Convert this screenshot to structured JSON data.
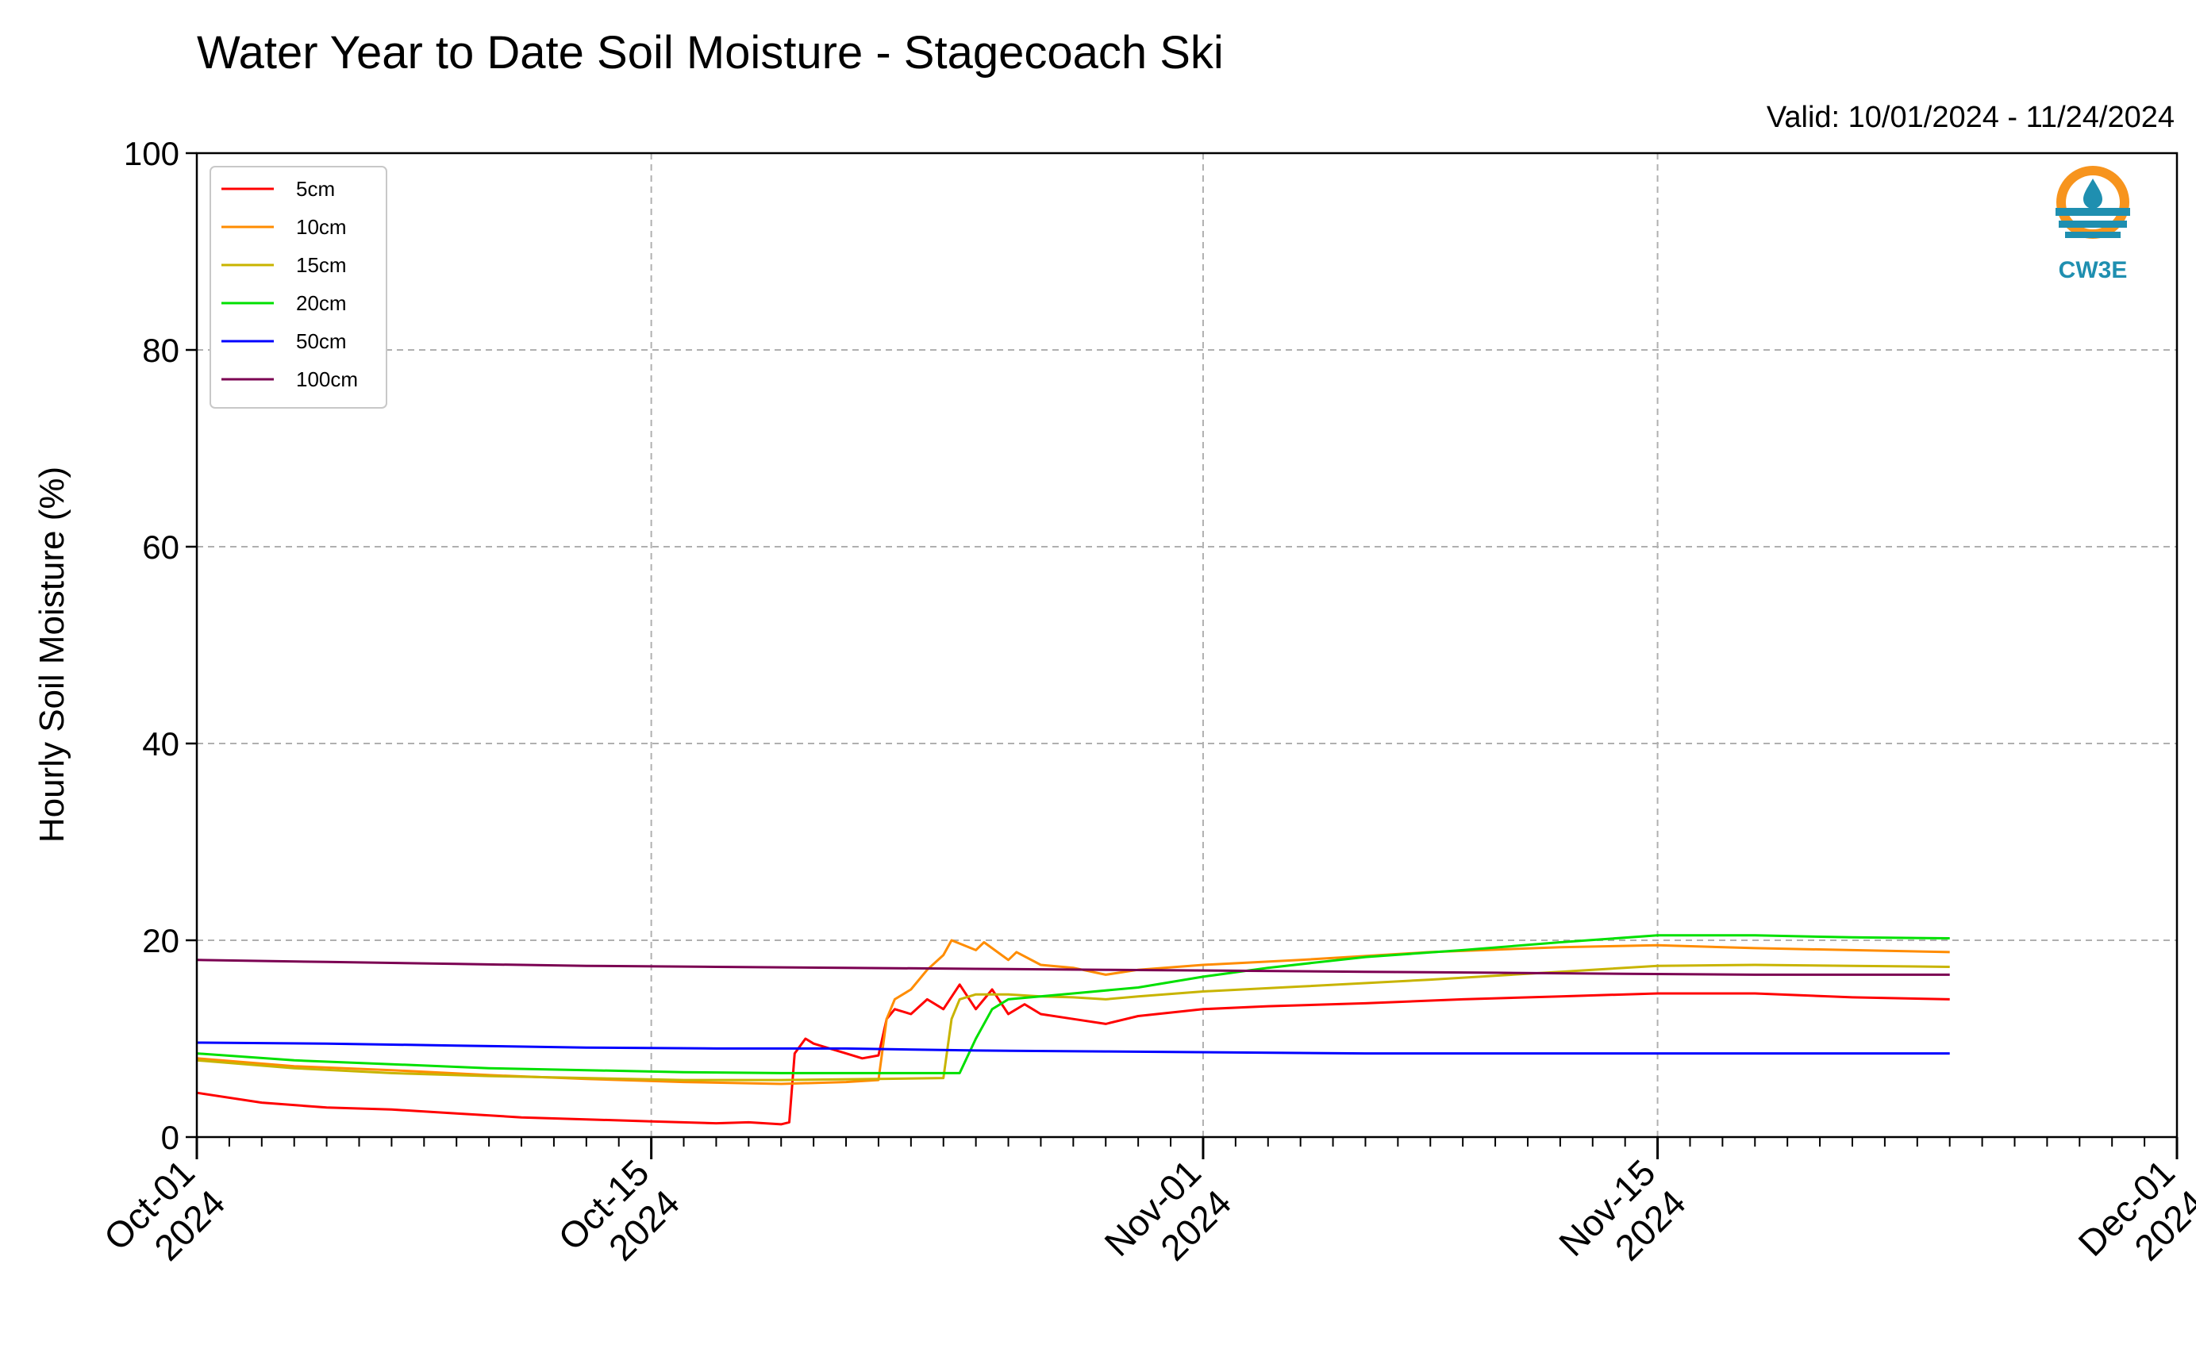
{
  "chart_data": {
    "type": "line",
    "title": "Water Year to Date Soil Moisture - Stagecoach Ski",
    "subtitle": "Valid: 10/01/2024 - 11/24/2024",
    "ylabel": "Hourly Soil Moisture (%)",
    "xlabel": "",
    "ylim": [
      0,
      100
    ],
    "xlim": [
      "2024-10-01",
      "2024-12-01"
    ],
    "yticks": [
      0,
      20,
      40,
      60,
      80,
      100
    ],
    "xticks": [
      {
        "date": "2024-10-01",
        "line1": "Oct-01",
        "line2": "2024"
      },
      {
        "date": "2024-10-15",
        "line1": "Oct-15",
        "line2": "2024"
      },
      {
        "date": "2024-11-01",
        "line1": "Nov-01",
        "line2": "2024"
      },
      {
        "date": "2024-11-15",
        "line1": "Nov-15",
        "line2": "2024"
      },
      {
        "date": "2024-12-01",
        "line1": "Dec-01",
        "line2": "2024"
      }
    ],
    "grid": true,
    "legend_position": "top-left",
    "logo_text": "CW3E",
    "series": [
      {
        "name": "5cm",
        "color": "#ff0000",
        "points": [
          [
            "2024-10-01",
            4.5
          ],
          [
            "2024-10-03",
            3.5
          ],
          [
            "2024-10-05",
            3.0
          ],
          [
            "2024-10-07",
            2.8
          ],
          [
            "2024-10-09",
            2.4
          ],
          [
            "2024-10-11",
            2.0
          ],
          [
            "2024-10-13",
            1.8
          ],
          [
            "2024-10-15",
            1.6
          ],
          [
            "2024-10-17",
            1.4
          ],
          [
            "2024-10-18",
            1.5
          ],
          [
            "2024-10-19",
            1.3
          ],
          [
            "2024-10-19T06",
            1.5
          ],
          [
            "2024-10-19T10",
            8.5
          ],
          [
            "2024-10-19T18",
            10.0
          ],
          [
            "2024-10-20",
            9.5
          ],
          [
            "2024-10-20T12",
            9.0
          ],
          [
            "2024-10-21",
            8.5
          ],
          [
            "2024-10-21T12",
            8.0
          ],
          [
            "2024-10-22",
            8.3
          ],
          [
            "2024-10-22T06",
            12.0
          ],
          [
            "2024-10-22T12",
            13.0
          ],
          [
            "2024-10-23",
            12.5
          ],
          [
            "2024-10-23T12",
            14.0
          ],
          [
            "2024-10-24",
            13.0
          ],
          [
            "2024-10-24T12",
            15.5
          ],
          [
            "2024-10-25",
            13.0
          ],
          [
            "2024-10-25T12",
            15.0
          ],
          [
            "2024-10-26",
            12.5
          ],
          [
            "2024-10-26T12",
            13.5
          ],
          [
            "2024-10-27",
            12.5
          ],
          [
            "2024-10-28",
            12.0
          ],
          [
            "2024-10-29",
            11.5
          ],
          [
            "2024-10-30",
            12.3
          ],
          [
            "2024-11-01",
            13.0
          ],
          [
            "2024-11-03",
            13.3
          ],
          [
            "2024-11-06",
            13.6
          ],
          [
            "2024-11-09",
            14.0
          ],
          [
            "2024-11-12",
            14.3
          ],
          [
            "2024-11-15",
            14.6
          ],
          [
            "2024-11-18",
            14.6
          ],
          [
            "2024-11-21",
            14.2
          ],
          [
            "2024-11-24",
            14.0
          ]
        ]
      },
      {
        "name": "10cm",
        "color": "#ff8c00",
        "points": [
          [
            "2024-10-01",
            8.0
          ],
          [
            "2024-10-04",
            7.2
          ],
          [
            "2024-10-07",
            6.8
          ],
          [
            "2024-10-10",
            6.3
          ],
          [
            "2024-10-13",
            5.9
          ],
          [
            "2024-10-16",
            5.6
          ],
          [
            "2024-10-19",
            5.4
          ],
          [
            "2024-10-21",
            5.6
          ],
          [
            "2024-10-22",
            5.8
          ],
          [
            "2024-10-22T06",
            12.0
          ],
          [
            "2024-10-22T12",
            14.0
          ],
          [
            "2024-10-23",
            15.0
          ],
          [
            "2024-10-23T12",
            17.0
          ],
          [
            "2024-10-24",
            18.5
          ],
          [
            "2024-10-24T06",
            20.0
          ],
          [
            "2024-10-25",
            19.0
          ],
          [
            "2024-10-25T06",
            19.8
          ],
          [
            "2024-10-26",
            18.0
          ],
          [
            "2024-10-26T06",
            18.8
          ],
          [
            "2024-10-27",
            17.5
          ],
          [
            "2024-10-28",
            17.2
          ],
          [
            "2024-10-29",
            16.5
          ],
          [
            "2024-10-30",
            17.0
          ],
          [
            "2024-11-01",
            17.5
          ],
          [
            "2024-11-04",
            18.0
          ],
          [
            "2024-11-08",
            18.8
          ],
          [
            "2024-11-12",
            19.3
          ],
          [
            "2024-11-15",
            19.5
          ],
          [
            "2024-11-18",
            19.2
          ],
          [
            "2024-11-21",
            19.0
          ],
          [
            "2024-11-24",
            18.8
          ]
        ]
      },
      {
        "name": "15cm",
        "color": "#c8b400",
        "points": [
          [
            "2024-10-01",
            7.8
          ],
          [
            "2024-10-04",
            7.0
          ],
          [
            "2024-10-07",
            6.5
          ],
          [
            "2024-10-10",
            6.2
          ],
          [
            "2024-10-13",
            6.0
          ],
          [
            "2024-10-16",
            5.8
          ],
          [
            "2024-10-19",
            5.8
          ],
          [
            "2024-10-22",
            5.9
          ],
          [
            "2024-10-24",
            6.0
          ],
          [
            "2024-10-24T06",
            12.0
          ],
          [
            "2024-10-24T12",
            14.0
          ],
          [
            "2024-10-25",
            14.5
          ],
          [
            "2024-10-26",
            14.5
          ],
          [
            "2024-10-27",
            14.3
          ],
          [
            "2024-10-28",
            14.2
          ],
          [
            "2024-10-29",
            14.0
          ],
          [
            "2024-10-30",
            14.3
          ],
          [
            "2024-11-01",
            14.8
          ],
          [
            "2024-11-04",
            15.3
          ],
          [
            "2024-11-08",
            16.0
          ],
          [
            "2024-11-12",
            16.8
          ],
          [
            "2024-11-15",
            17.4
          ],
          [
            "2024-11-18",
            17.5
          ],
          [
            "2024-11-21",
            17.4
          ],
          [
            "2024-11-24",
            17.3
          ]
        ]
      },
      {
        "name": "20cm",
        "color": "#00e000",
        "points": [
          [
            "2024-10-01",
            8.5
          ],
          [
            "2024-10-04",
            7.8
          ],
          [
            "2024-10-07",
            7.4
          ],
          [
            "2024-10-10",
            7.0
          ],
          [
            "2024-10-13",
            6.8
          ],
          [
            "2024-10-16",
            6.6
          ],
          [
            "2024-10-19",
            6.5
          ],
          [
            "2024-10-22",
            6.5
          ],
          [
            "2024-10-24",
            6.5
          ],
          [
            "2024-10-24T12",
            6.5
          ],
          [
            "2024-10-25",
            10.0
          ],
          [
            "2024-10-25T12",
            13.0
          ],
          [
            "2024-10-26",
            14.0
          ],
          [
            "2024-10-28",
            14.6
          ],
          [
            "2024-10-30",
            15.2
          ],
          [
            "2024-11-01",
            16.3
          ],
          [
            "2024-11-03",
            17.2
          ],
          [
            "2024-11-06",
            18.3
          ],
          [
            "2024-11-09",
            19.0
          ],
          [
            "2024-11-12",
            19.8
          ],
          [
            "2024-11-15",
            20.5
          ],
          [
            "2024-11-18",
            20.5
          ],
          [
            "2024-11-21",
            20.3
          ],
          [
            "2024-11-24",
            20.2
          ]
        ]
      },
      {
        "name": "50cm",
        "color": "#0000ff",
        "points": [
          [
            "2024-10-01",
            9.6
          ],
          [
            "2024-10-05",
            9.5
          ],
          [
            "2024-10-09",
            9.3
          ],
          [
            "2024-10-13",
            9.1
          ],
          [
            "2024-10-17",
            9.0
          ],
          [
            "2024-10-21",
            9.0
          ],
          [
            "2024-10-25",
            8.8
          ],
          [
            "2024-10-29",
            8.7
          ],
          [
            "2024-11-02",
            8.6
          ],
          [
            "2024-11-06",
            8.5
          ],
          [
            "2024-11-10",
            8.5
          ],
          [
            "2024-11-14",
            8.5
          ],
          [
            "2024-11-18",
            8.5
          ],
          [
            "2024-11-24",
            8.5
          ]
        ]
      },
      {
        "name": "100cm",
        "color": "#7b0052",
        "points": [
          [
            "2024-10-01",
            18.0
          ],
          [
            "2024-10-05",
            17.8
          ],
          [
            "2024-10-09",
            17.6
          ],
          [
            "2024-10-13",
            17.4
          ],
          [
            "2024-10-17",
            17.3
          ],
          [
            "2024-10-21",
            17.2
          ],
          [
            "2024-10-25",
            17.1
          ],
          [
            "2024-10-29",
            17.0
          ],
          [
            "2024-11-02",
            16.9
          ],
          [
            "2024-11-06",
            16.8
          ],
          [
            "2024-11-10",
            16.7
          ],
          [
            "2024-11-14",
            16.6
          ],
          [
            "2024-11-18",
            16.5
          ],
          [
            "2024-11-24",
            16.5
          ]
        ]
      }
    ]
  }
}
